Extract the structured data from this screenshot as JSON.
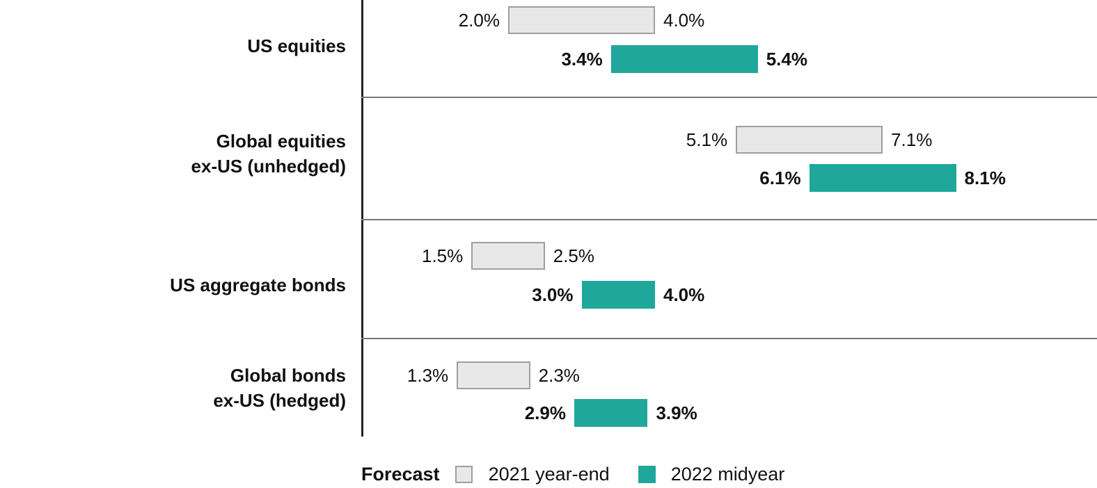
{
  "chart_data": {
    "type": "bar",
    "orientation": "horizontal-range",
    "title": "",
    "xlabel": "",
    "ylabel": "",
    "xlim": [
      0,
      10
    ],
    "grid": false,
    "legend_position": "bottom",
    "categories": [
      "US equities",
      "Global equities ex-US (unhedged)",
      "US aggregate bonds",
      "Global bonds ex-US (hedged)"
    ],
    "series": [
      {
        "name": "2021 year-end",
        "color": "#e8e8e8",
        "ranges": [
          [
            2.0,
            4.0
          ],
          [
            5.1,
            7.1
          ],
          [
            1.5,
            2.5
          ],
          [
            1.3,
            2.3
          ]
        ]
      },
      {
        "name": "2022 midyear",
        "color": "#1fa79c",
        "ranges": [
          [
            3.4,
            5.4
          ],
          [
            6.1,
            8.1
          ],
          [
            3.0,
            4.0
          ],
          [
            2.9,
            3.9
          ]
        ]
      }
    ]
  },
  "rows": [
    {
      "label_lines": [
        "US equities"
      ],
      "gray": {
        "min_label": "2.0%",
        "max_label": "4.0%"
      },
      "teal": {
        "min_label": "3.4%",
        "max_label": "5.4%"
      }
    },
    {
      "label_lines": [
        "Global equities",
        "ex-US (unhedged)"
      ],
      "gray": {
        "min_label": "5.1%",
        "max_label": "7.1%"
      },
      "teal": {
        "min_label": "6.1%",
        "max_label": "8.1%"
      }
    },
    {
      "label_lines": [
        "US aggregate bonds"
      ],
      "gray": {
        "min_label": "1.5%",
        "max_label": "2.5%"
      },
      "teal": {
        "min_label": "3.0%",
        "max_label": "4.0%"
      }
    },
    {
      "label_lines": [
        "Global bonds",
        "ex-US (hedged)"
      ],
      "gray": {
        "min_label": "1.3%",
        "max_label": "2.3%"
      },
      "teal": {
        "min_label": "2.9%",
        "max_label": "3.9%"
      }
    }
  ],
  "legend": {
    "title": "Forecast",
    "items": [
      {
        "label": "2021 year-end",
        "color": "#e8e8e8"
      },
      {
        "label": "2022 midyear",
        "color": "#1fa79c"
      }
    ]
  },
  "colors": {
    "teal": "#1fa79c",
    "gray_fill": "#e8e8e8",
    "gray_border": "#9e9e9e",
    "divider": "#757575",
    "axis": "#222222",
    "text": "#111111"
  }
}
